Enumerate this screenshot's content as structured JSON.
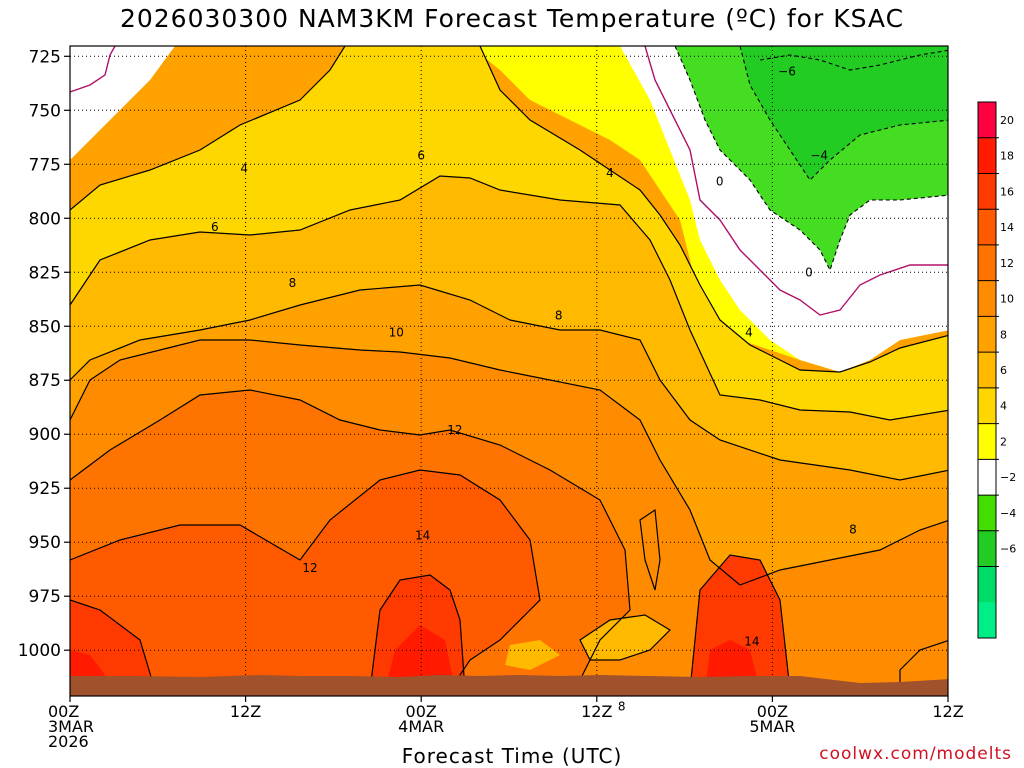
{
  "title": "2026030300 NAM3KM Forecast Temperature (ºC) for KSAC",
  "xlabel": "Forecast Time (UTC)",
  "credit": "coolwx.com/modelts",
  "chart_data": {
    "type": "contour",
    "y_axis": {
      "ticks": [
        725,
        750,
        775,
        800,
        825,
        850,
        875,
        900,
        925,
        950,
        975,
        1000
      ],
      "range": [
        720,
        1020
      ]
    },
    "x_axis": {
      "range_hours": [
        0,
        60
      ],
      "ticks": [
        {
          "hour": 0,
          "lines": [
            "00Z",
            "3MAR",
            "2026"
          ]
        },
        {
          "hour": 12,
          "lines": [
            "12Z"
          ]
        },
        {
          "hour": 24,
          "lines": [
            "00Z",
            "4MAR"
          ]
        },
        {
          "hour": 36,
          "lines": [
            "12Z"
          ]
        },
        {
          "hour": 48,
          "lines": [
            "00Z",
            "5MAR"
          ]
        },
        {
          "hour": 60,
          "lines": [
            "12Z"
          ]
        }
      ]
    },
    "grid": true,
    "colorbar": {
      "labels": [
        "20",
        "18",
        "16",
        "14",
        "12",
        "10",
        "8",
        "6",
        "4",
        "2",
        "−2",
        "−4",
        "−6"
      ],
      "colors": [
        "#ff0040",
        "#ff1a00",
        "#ff3a00",
        "#ff5a00",
        "#ff7400",
        "#ff8c00",
        "#ffa200",
        "#ffba00",
        "#ffd700",
        "#ffff00",
        "#ffffff",
        "#44dd00",
        "#22cc22",
        "#00dd66",
        "#00ee88"
      ]
    },
    "contour_labels": [
      {
        "text": "4",
        "hour": 11.9,
        "p": 777
      },
      {
        "text": "6",
        "hour": 24.0,
        "p": 771
      },
      {
        "text": "4",
        "hour": 36.9,
        "p": 779
      },
      {
        "text": "−6",
        "hour": 49.0,
        "p": 732
      },
      {
        "text": "−4",
        "hour": 51.2,
        "p": 771
      },
      {
        "text": "0",
        "hour": 44.4,
        "p": 783
      },
      {
        "text": "6",
        "hour": 9.9,
        "p": 804
      },
      {
        "text": "8",
        "hour": 15.2,
        "p": 830
      },
      {
        "text": "8",
        "hour": 33.4,
        "p": 845
      },
      {
        "text": "0",
        "hour": 50.5,
        "p": 825
      },
      {
        "text": "10",
        "hour": 22.3,
        "p": 853
      },
      {
        "text": "4",
        "hour": 46.4,
        "p": 853
      },
      {
        "text": "12",
        "hour": 26.3,
        "p": 898
      },
      {
        "text": "14",
        "hour": 24.1,
        "p": 947
      },
      {
        "text": "12",
        "hour": 16.4,
        "p": 962
      },
      {
        "text": "8",
        "hour": 53.5,
        "p": 944
      },
      {
        "text": "14",
        "hour": 46.6,
        "p": 996
      },
      {
        "text": "8",
        "hour": 37.7,
        "p": 1026
      }
    ]
  }
}
